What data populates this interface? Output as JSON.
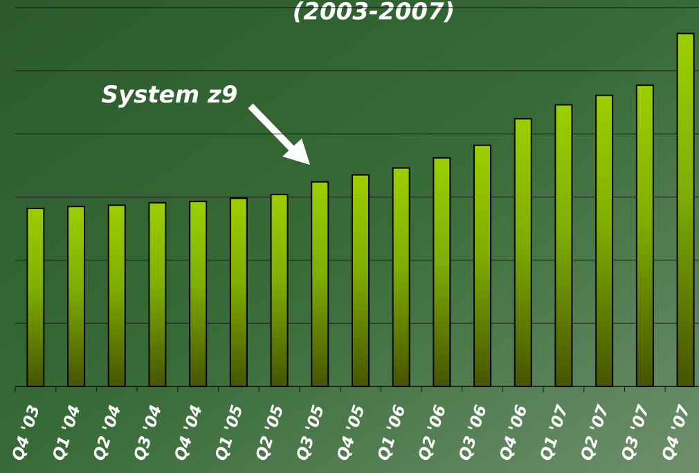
{
  "chart_data": {
    "type": "bar",
    "title": "(2003-2007)",
    "annotations": [
      "System z9"
    ],
    "categories": [
      "Q4 '03",
      "Q1 '04",
      "Q2 '04",
      "Q3 '04",
      "Q4 '04",
      "Q1 '05",
      "Q2 '05",
      "Q3 '05",
      "Q4 '05",
      "Q1 '06",
      "Q2 '06",
      "Q3 '06",
      "Q4 '06",
      "Q1 '07",
      "Q2 '07",
      "Q3 '07",
      "Q4 '07"
    ],
    "values": [
      2.82,
      2.85,
      2.87,
      2.91,
      2.93,
      2.98,
      3.04,
      3.24,
      3.35,
      3.46,
      3.62,
      3.82,
      4.24,
      4.46,
      4.61,
      4.77,
      5.59
    ],
    "color": "#99cc00",
    "ylim": [
      0,
      6
    ],
    "yticks": [
      0,
      1,
      2,
      3,
      4,
      5,
      6
    ],
    "grid": true
  }
}
